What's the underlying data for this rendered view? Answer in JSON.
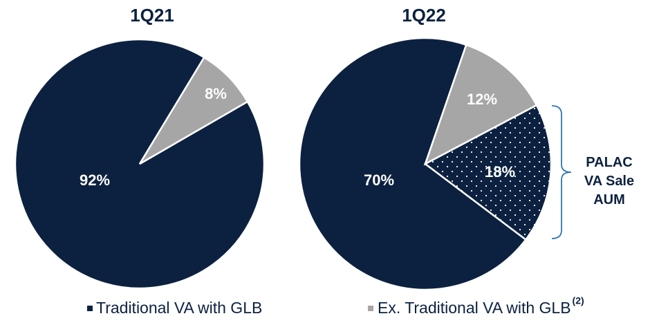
{
  "chart_data": [
    {
      "type": "pie",
      "title": "1Q21",
      "categories": [
        "Traditional VA with GLB",
        "Ex. Traditional VA with GLB"
      ],
      "values": [
        92,
        8
      ],
      "value_labels": [
        "92%",
        "8%"
      ],
      "colors": [
        "#0c2140",
        "#a6a6a6"
      ],
      "dotted": [
        false,
        false
      ]
    },
    {
      "type": "pie",
      "title": "1Q22",
      "categories": [
        "Traditional VA with GLB",
        "Ex. Traditional VA with GLB",
        "PALAC VA Sale AUM"
      ],
      "values": [
        70,
        12,
        18
      ],
      "value_labels": [
        "70%",
        "12%",
        "18%"
      ],
      "colors": [
        "#0c2140",
        "#a6a6a6",
        "#0c2140"
      ],
      "dotted": [
        false,
        false,
        true
      ]
    }
  ],
  "legend_note": "(2)"
}
